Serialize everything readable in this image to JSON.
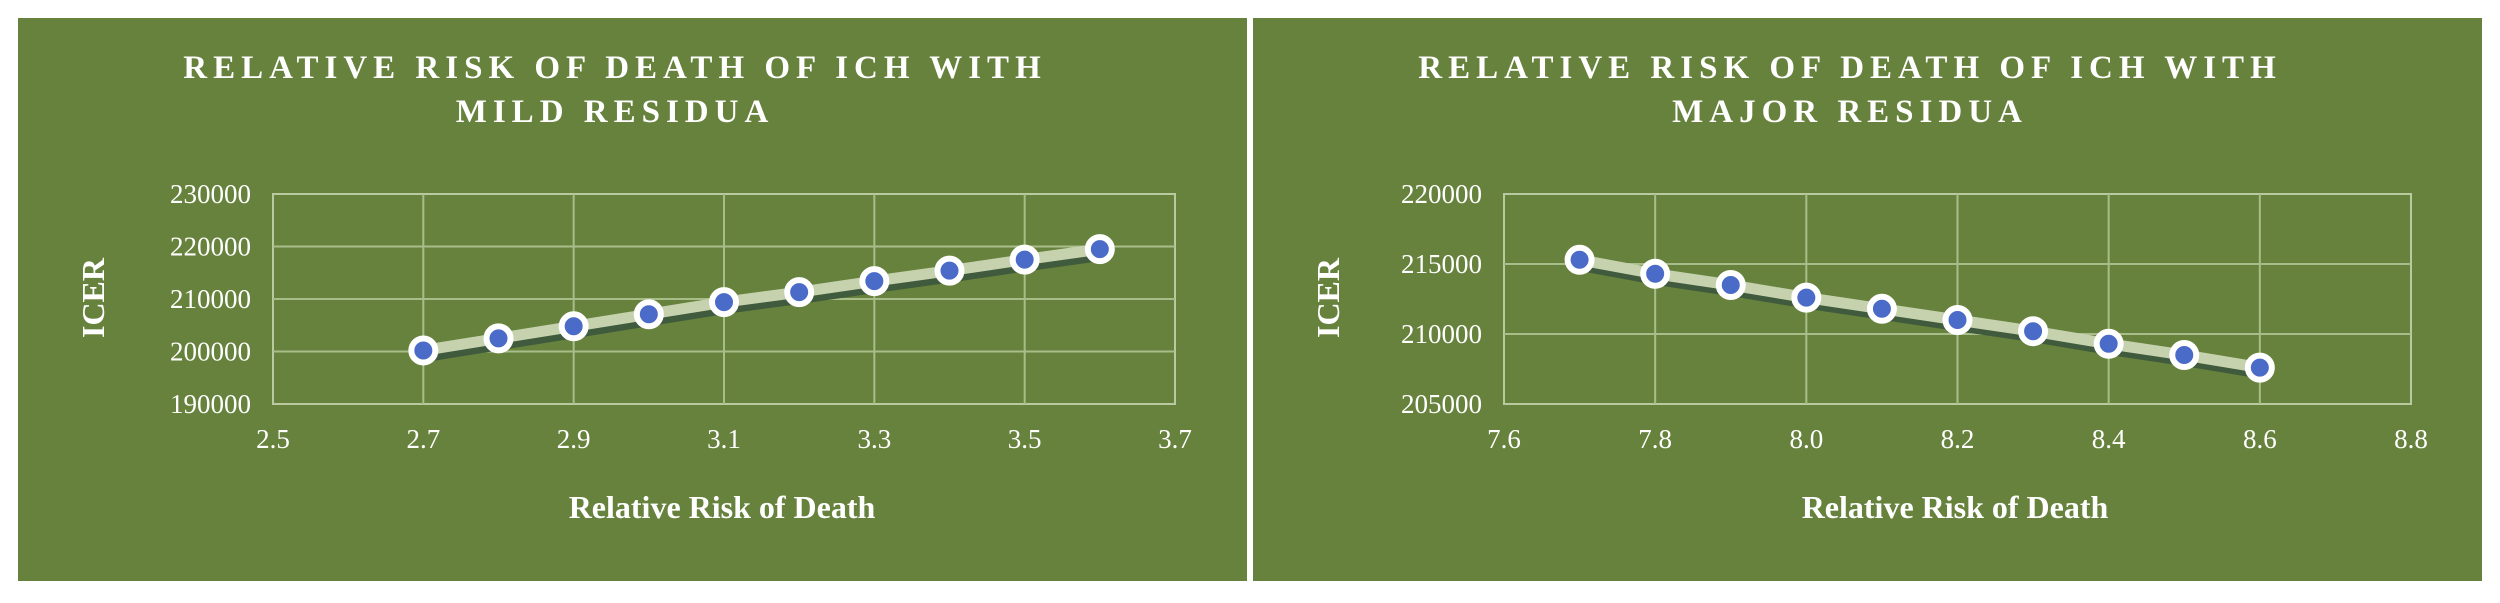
{
  "colors": {
    "background": "#67823d",
    "plot_border": "#b9c9a0",
    "gridline": "#a9bd8a",
    "line_highlight": "#c5d2ad",
    "line_shadow": "#3f5a3c",
    "marker_fill": "#4a6bc8",
    "marker_edge": "#ffffff"
  },
  "chart_data": [
    {
      "type": "line",
      "title_lines": [
        "RELATIVE RISK OF DEATH OF ICH WITH",
        "MILD RESIDUA"
      ],
      "xlabel": "Relative Risk of Death",
      "ylabel": "ICER",
      "xlim": [
        2.5,
        3.7
      ],
      "ylim": [
        190000,
        230000
      ],
      "x_ticks": [
        "2.5",
        "2.7",
        "2.9",
        "3.1",
        "3.3",
        "3.5",
        "3.7"
      ],
      "y_ticks": [
        "190000",
        "200000",
        "210000",
        "220000",
        "230000"
      ],
      "grid": true,
      "legend": "none",
      "x": [
        2.7,
        2.8,
        2.9,
        3.0,
        3.1,
        3.2,
        3.3,
        3.4,
        3.5,
        3.6
      ],
      "y": [
        200200,
        202500,
        204800,
        207100,
        209400,
        211300,
        213400,
        215400,
        217500,
        219500
      ]
    },
    {
      "type": "line",
      "title_lines": [
        "RELATIVE RISK OF DEATH OF ICH WITH",
        "MAJOR RESIDUA"
      ],
      "xlabel": "Relative Risk of Death",
      "ylabel": "ICER",
      "xlim": [
        7.6,
        8.8
      ],
      "ylim": [
        205000,
        220000
      ],
      "x_ticks": [
        "7.6",
        "7.8",
        "8.0",
        "8.2",
        "8.4",
        "8.6",
        "8.8"
      ],
      "y_ticks": [
        "205000",
        "210000",
        "215000",
        "220000"
      ],
      "grid": true,
      "legend": "none",
      "x": [
        7.7,
        7.8,
        7.9,
        8.0,
        8.1,
        8.2,
        8.3,
        8.4,
        8.5,
        8.6
      ],
      "y": [
        215300,
        214300,
        213500,
        212600,
        211800,
        211000,
        210200,
        209300,
        208500,
        207600
      ]
    }
  ]
}
